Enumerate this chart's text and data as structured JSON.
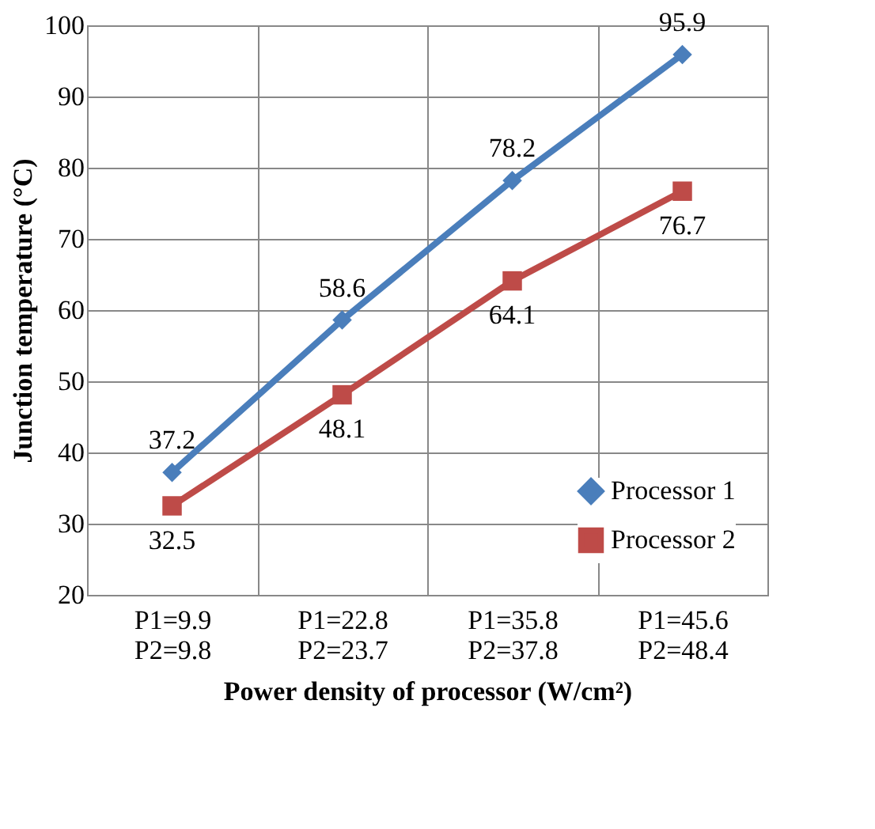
{
  "chart_data": {
    "type": "line",
    "xlabel": "Power density of processor  (W/cm²)",
    "ylabel": "Junction temperature (°C)",
    "categories": [
      "P1=9.9\nP2=9.8",
      "P1=22.8\nP2=23.7",
      "P1=35.8\nP2=37.8",
      "P1=45.6\nP2=48.4"
    ],
    "series": [
      {
        "name": "Processor 1",
        "color": "#4a7ebb",
        "marker": "diamond",
        "values": [
          37.2,
          58.6,
          78.2,
          95.9
        ]
      },
      {
        "name": "Processor 2",
        "color": "#be4b48",
        "marker": "square",
        "values": [
          32.5,
          48.1,
          64.1,
          76.7
        ]
      }
    ],
    "ylim": [
      20,
      100
    ],
    "yticks": [
      20,
      30,
      40,
      50,
      60,
      70,
      80,
      90,
      100
    ],
    "grid": true,
    "legend": "bottom right",
    "data_labels": true
  }
}
